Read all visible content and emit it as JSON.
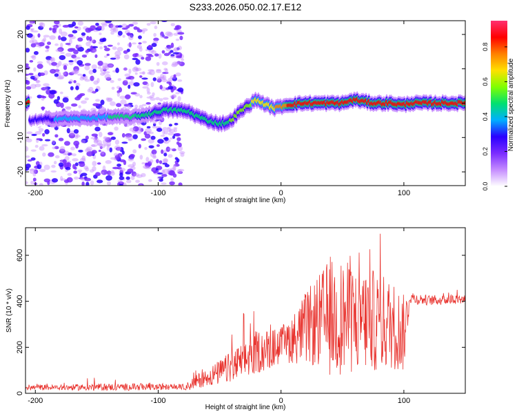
{
  "title": "S233.2026.050.02.17.E12",
  "colorscale": [
    "#ffffff",
    "#c58cff",
    "#7a2cff",
    "#2a00ff",
    "#00b0ff",
    "#00e070",
    "#80ff00",
    "#ffe000",
    "#ff8000",
    "#ff0000",
    "#ff3070"
  ],
  "colors": {
    "line": "#e8302b",
    "axis": "#000000",
    "background": "#ffffff"
  },
  "chart_data": [
    {
      "type": "heatmap",
      "title": "S233.2026.050.02.17.E12",
      "xlabel": "Height of straight line (km)",
      "ylabel": "Frequency (Hz)",
      "xlim": [
        -208,
        150
      ],
      "ylim": [
        -24,
        24
      ],
      "xticks": [
        -200,
        -100,
        0,
        100
      ],
      "xtick_labels": [
        "-200",
        "-100",
        "0",
        "100"
      ],
      "yticks": [
        -20,
        -10,
        0,
        10,
        20
      ],
      "ytick_labels": [
        "-20",
        "-10",
        "0",
        "10",
        "20"
      ],
      "noise_region_x": [
        -208,
        -80
      ],
      "ridge": {
        "x": [
          -205,
          -185,
          -165,
          -140,
          -120,
          -105,
          -95,
          -85,
          -75,
          -70,
          -60,
          -50,
          -42,
          -35,
          -28,
          -20,
          -12,
          -5,
          0,
          5,
          20,
          40,
          50,
          60,
          75,
          90,
          100,
          105,
          150
        ],
        "y": [
          -5,
          -4.5,
          -4.5,
          -4,
          -4,
          -3,
          -2,
          -2,
          -2.5,
          -3.5,
          -5,
          -6,
          -5.5,
          -3,
          -1,
          1,
          -0.5,
          -1.5,
          -1,
          -0.5,
          0,
          0,
          0,
          1,
          0,
          0,
          -0.5,
          0,
          0
        ],
        "amplitude": [
          0.3,
          0.35,
          0.4,
          0.45,
          0.45,
          0.5,
          0.55,
          0.5,
          0.55,
          0.5,
          0.5,
          0.5,
          0.55,
          0.55,
          0.6,
          0.7,
          0.7,
          0.75,
          0.8,
          0.85,
          0.9,
          0.9,
          0.85,
          0.9,
          0.9,
          0.9,
          0.85,
          0.9,
          0.9
        ]
      },
      "colorbar": {
        "label": "Normalized spectral amplitude",
        "range": [
          0,
          0.95
        ],
        "ticks": [
          0.0,
          0.2,
          0.4,
          0.6,
          0.8
        ],
        "tick_labels": [
          "0.0",
          "0.2",
          "0.4",
          "0.6",
          "0.8"
        ]
      }
    },
    {
      "type": "line",
      "xlabel": "Height of straight line (km)",
      "ylabel": "SNR (10 * v/v)",
      "xlim": [
        -208,
        150
      ],
      "ylim": [
        0,
        720
      ],
      "xticks": [
        -200,
        -100,
        0,
        100
      ],
      "xtick_labels": [
        "-200",
        "-100",
        "0",
        "100"
      ],
      "yticks": [
        0,
        200,
        400,
        600
      ],
      "ytick_labels": [
        "0",
        "200",
        "400",
        "600"
      ],
      "series": [
        {
          "name": "SNR",
          "x": [
            -208,
            -180,
            -150,
            -120,
            -90,
            -80,
            -75,
            -70,
            -60,
            -50,
            -40,
            -30,
            -20,
            -10,
            0,
            10,
            20,
            30,
            40,
            50,
            60,
            70,
            80,
            90,
            100,
            105,
            110,
            120,
            130,
            140,
            150
          ],
          "mean": [
            25,
            25,
            27,
            27,
            27,
            28,
            32,
            50,
            70,
            90,
            115,
            140,
            180,
            190,
            210,
            240,
            280,
            310,
            330,
            330,
            320,
            320,
            310,
            300,
            260,
            420,
            410,
            405,
            405,
            410,
            410
          ],
          "spread": [
            12,
            12,
            15,
            15,
            12,
            12,
            20,
            30,
            40,
            55,
            70,
            85,
            95,
            90,
            80,
            110,
            160,
            200,
            260,
            250,
            240,
            230,
            220,
            200,
            170,
            30,
            25,
            22,
            22,
            22,
            22
          ],
          "max": [
            40,
            45,
            80,
            50,
            45,
            45,
            60,
            110,
            140,
            200,
            270,
            360,
            400,
            330,
            260,
            360,
            500,
            560,
            715,
            660,
            700,
            650,
            700,
            650,
            560,
            470,
            450,
            450,
            450,
            460,
            460
          ]
        }
      ]
    }
  ]
}
